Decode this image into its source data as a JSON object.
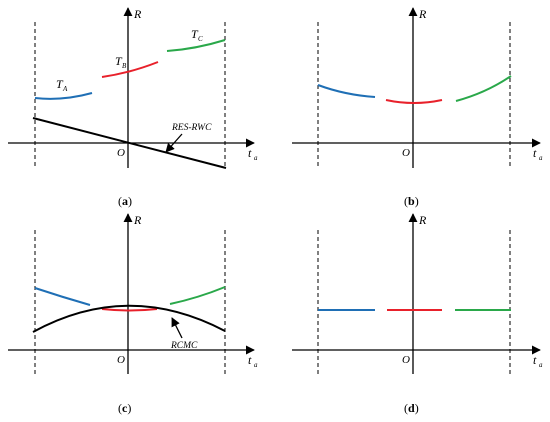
{
  "axis_labels": {
    "vertical": "R",
    "horizontal_main": "t",
    "horizontal_sub": "a",
    "origin": "O"
  },
  "colors": {
    "segment_a": "#1f6fb5",
    "segment_b": "#e8212b",
    "segment_c": "#2aa84a",
    "reference": "#000000"
  },
  "panels": [
    {
      "id": "a",
      "caption_open": "(",
      "caption_letter": "a",
      "caption_close": ")",
      "segment_labels": [
        {
          "main": "T",
          "sub": "A"
        },
        {
          "main": "T",
          "sub": "B"
        },
        {
          "main": "T",
          "sub": "C"
        }
      ],
      "annotation": "RES-RWC"
    },
    {
      "id": "b",
      "caption_open": "(",
      "caption_letter": "b",
      "caption_close": ")"
    },
    {
      "id": "c",
      "caption_open": "(",
      "caption_letter": "c",
      "caption_close": ")",
      "annotation": "RCMC"
    },
    {
      "id": "d",
      "caption_open": "(",
      "caption_letter": "d",
      "caption_close": ")"
    }
  ]
}
